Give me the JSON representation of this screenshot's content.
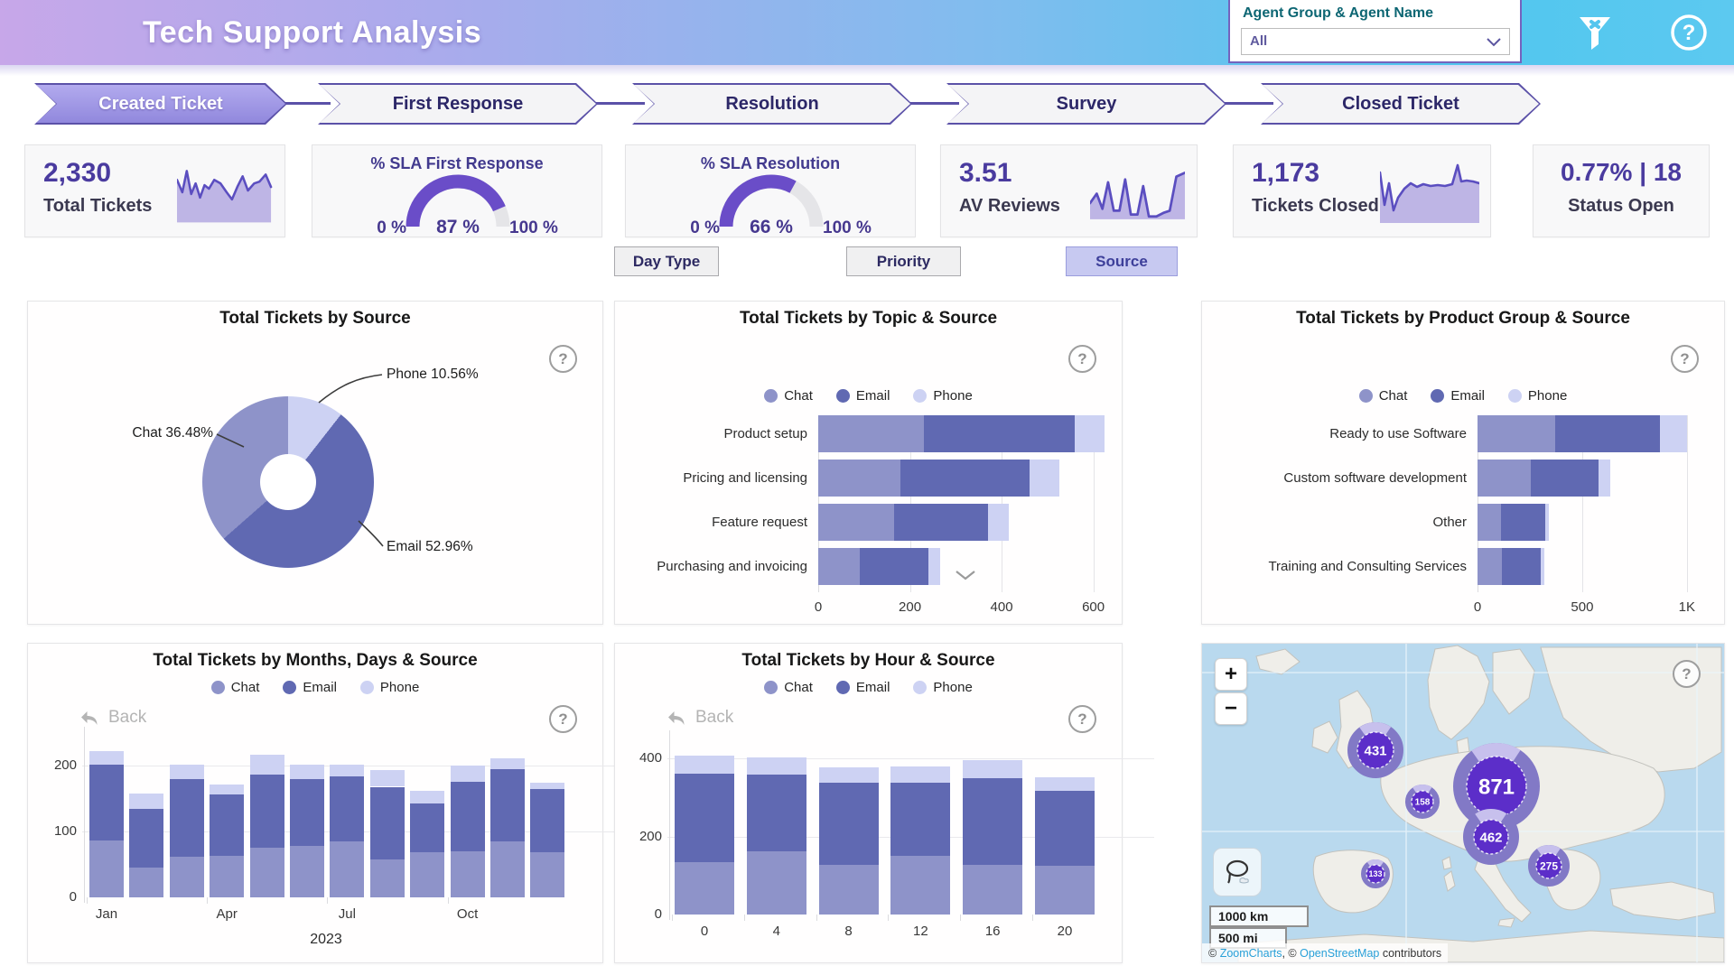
{
  "header": {
    "title": "Tech Support Analysis",
    "slicer_label": "Agent Group & Agent Name",
    "slicer_value": "All"
  },
  "tabs": [
    {
      "label": "Created Ticket",
      "active": true
    },
    {
      "label": "First Response",
      "active": false
    },
    {
      "label": "Resolution",
      "active": false
    },
    {
      "label": "Survey",
      "active": false
    },
    {
      "label": "Closed Ticket",
      "active": false
    }
  ],
  "kpis": {
    "total_tickets": {
      "value": "2,330",
      "label": "Total Tickets",
      "spark": [
        [
          0,
          22
        ],
        [
          6,
          36
        ],
        [
          11,
          12
        ],
        [
          16,
          38
        ],
        [
          21,
          26
        ],
        [
          26,
          42
        ],
        [
          31,
          28
        ],
        [
          36,
          32
        ],
        [
          42,
          22
        ],
        [
          49,
          26
        ],
        [
          56,
          36
        ],
        [
          62,
          44
        ],
        [
          68,
          30
        ],
        [
          74,
          18
        ],
        [
          80,
          34
        ],
        [
          87,
          26
        ],
        [
          93,
          24
        ],
        [
          100,
          16
        ],
        [
          106,
          30
        ]
      ]
    },
    "sla_first_response": {
      "title": "% SLA First Response",
      "pct": 87,
      "value_label": "87 %",
      "min_label": "0 %",
      "max_label": "100 %"
    },
    "sla_resolution": {
      "title": "% SLA Resolution",
      "pct": 66,
      "value_label": "66 %",
      "min_label": "0 %",
      "max_label": "100 %"
    },
    "av_reviews": {
      "value": "3.51",
      "label": "AV Reviews",
      "spark": [
        [
          0,
          38
        ],
        [
          7,
          28
        ],
        [
          13,
          44
        ],
        [
          19,
          16
        ],
        [
          25,
          46
        ],
        [
          31,
          46
        ],
        [
          37,
          13
        ],
        [
          43,
          50
        ],
        [
          50,
          50
        ],
        [
          56,
          20
        ],
        [
          62,
          52
        ],
        [
          70,
          52
        ],
        [
          78,
          48
        ],
        [
          84,
          46
        ],
        [
          91,
          10
        ],
        [
          100,
          6
        ]
      ]
    },
    "tickets_closed": {
      "value": "1,173",
      "label": "Tickets Closed",
      "spark": [
        [
          0,
          14
        ],
        [
          5,
          50
        ],
        [
          10,
          26
        ],
        [
          15,
          56
        ],
        [
          20,
          42
        ],
        [
          27,
          32
        ],
        [
          34,
          26
        ],
        [
          41,
          30
        ],
        [
          48,
          27
        ],
        [
          56,
          29
        ],
        [
          64,
          28
        ],
        [
          72,
          29
        ],
        [
          80,
          27
        ],
        [
          86,
          6
        ],
        [
          90,
          24
        ],
        [
          96,
          23
        ],
        [
          103,
          24
        ],
        [
          110,
          26
        ]
      ]
    },
    "status_open": {
      "value": "0.77% | 18",
      "label": "Status Open"
    }
  },
  "filter_buttons": [
    {
      "label": "Day Type",
      "active": false
    },
    {
      "label": "Priority",
      "active": false
    },
    {
      "label": "Source",
      "active": true
    }
  ],
  "legend": [
    {
      "label": "Chat",
      "color": "#8e93c9"
    },
    {
      "label": "Email",
      "color": "#6069b2"
    },
    {
      "label": "Phone",
      "color": "#cdd2f3"
    }
  ],
  "back_label": "Back",
  "colors": {
    "chat": "#8e93c9",
    "email": "#6069b2",
    "phone": "#cdd2f3",
    "gauge": "#6a4dc8",
    "accent_dark": "#4a3b9f"
  },
  "chart_data": [
    {
      "id": "by_source",
      "type": "pie",
      "title": "Total Tickets by Source",
      "labels": [
        "Phone",
        "Email",
        "Chat"
      ],
      "values": [
        10.56,
        52.96,
        36.48
      ],
      "unit": "%",
      "callouts": {
        "phone": "Phone 10.56%",
        "email": "Email 52.96%",
        "chat": "Chat 36.48%"
      }
    },
    {
      "id": "by_topic",
      "type": "bar",
      "stacked": true,
      "orientation": "horizontal",
      "title": "Total Tickets by Topic & Source",
      "categories": [
        "Product setup",
        "Pricing and licensing",
        "Feature request",
        "Purchasing and invoicing"
      ],
      "series": [
        {
          "name": "Chat",
          "values": [
            230,
            180,
            165,
            90
          ]
        },
        {
          "name": "Email",
          "values": [
            330,
            280,
            205,
            150
          ]
        },
        {
          "name": "Phone",
          "values": [
            65,
            65,
            45,
            25
          ]
        }
      ],
      "xticks": [
        0,
        200,
        400,
        600
      ],
      "xtick_labels": [
        "0",
        "200",
        "400",
        "600"
      ],
      "xmax": 650,
      "has_scroll_hint": true
    },
    {
      "id": "by_product_group",
      "type": "bar",
      "stacked": true,
      "orientation": "horizontal",
      "title": "Total Tickets by Product Group & Source",
      "categories": [
        "Ready to use Software",
        "Custom software development",
        "Other",
        "Training and Consulting Services"
      ],
      "series": [
        {
          "name": "Chat",
          "values": [
            370,
            255,
            110,
            115
          ]
        },
        {
          "name": "Email",
          "values": [
            500,
            325,
            215,
            185
          ]
        },
        {
          "name": "Phone",
          "values": [
            130,
            55,
            15,
            20
          ]
        }
      ],
      "xticks": [
        0,
        500,
        1000
      ],
      "xtick_labels": [
        "0",
        "500",
        "1K"
      ],
      "xmax": 1100
    },
    {
      "id": "by_months",
      "type": "column",
      "stacked": true,
      "title": "Total Tickets by Months, Days & Source",
      "categories": [
        "Jan",
        "Feb",
        "Mar",
        "Apr",
        "May",
        "Jun",
        "Jul",
        "Aug",
        "Sep",
        "Oct",
        "Nov",
        "Dec"
      ],
      "x_axis_labels": [
        {
          "text": "Jan",
          "index": 0
        },
        {
          "text": "Apr",
          "index": 3
        },
        {
          "text": "Jul",
          "index": 6
        },
        {
          "text": "Oct",
          "index": 9
        }
      ],
      "year_label": "2023",
      "series": [
        {
          "name": "Chat",
          "values": [
            87,
            45,
            62,
            63,
            75,
            78,
            85,
            58,
            68,
            70,
            85,
            68
          ]
        },
        {
          "name": "Email",
          "values": [
            115,
            90,
            118,
            94,
            112,
            102,
            99,
            110,
            74,
            106,
            110,
            97
          ]
        },
        {
          "name": "Phone",
          "values": [
            20,
            23,
            22,
            15,
            30,
            22,
            18,
            26,
            20,
            24,
            16,
            9
          ]
        }
      ],
      "yticks": [
        0,
        100,
        200
      ],
      "ymax": 240,
      "has_back": true
    },
    {
      "id": "by_hour",
      "type": "column",
      "stacked": true,
      "title": "Total Tickets by Hour & Source",
      "categories": [
        "0",
        "4",
        "8",
        "12",
        "16",
        "20"
      ],
      "series": [
        {
          "name": "Chat",
          "values": [
            135,
            163,
            128,
            150,
            128,
            126
          ]
        },
        {
          "name": "Email",
          "values": [
            227,
            195,
            210,
            187,
            222,
            192
          ]
        },
        {
          "name": "Phone",
          "values": [
            46,
            44,
            40,
            43,
            45,
            34
          ]
        }
      ],
      "yticks": [
        0,
        200,
        400
      ],
      "ymax": 440,
      "has_back": true
    },
    {
      "id": "map",
      "type": "map",
      "bubbles": [
        {
          "value": "871",
          "x": 326,
          "y": 158,
          "r1": 33,
          "r2": 47,
          "fs": 24
        },
        {
          "value": "431",
          "x": 192,
          "y": 118,
          "r1": 20,
          "r2": 30,
          "fs": 15
        },
        {
          "value": "462",
          "x": 320,
          "y": 214,
          "r1": 19,
          "r2": 30,
          "fs": 15
        },
        {
          "value": "275",
          "x": 384,
          "y": 246,
          "r1": 14,
          "r2": 22,
          "fs": 12
        },
        {
          "value": "158",
          "x": 244,
          "y": 175,
          "r1": 12,
          "r2": 18,
          "fs": 10
        },
        {
          "value": "133",
          "x": 192,
          "y": 255,
          "r1": 10,
          "r2": 15,
          "fs": 9
        }
      ],
      "controls": {
        "zoom_in": "+",
        "zoom_out": "−"
      },
      "scale_km": "1000 km",
      "scale_mi": "500 mi",
      "attribution": {
        "p1": "© ",
        "link1": "ZoomCharts",
        "p2": ", © ",
        "link2": "OpenStreetMap",
        "p3": " contributors"
      }
    }
  ]
}
